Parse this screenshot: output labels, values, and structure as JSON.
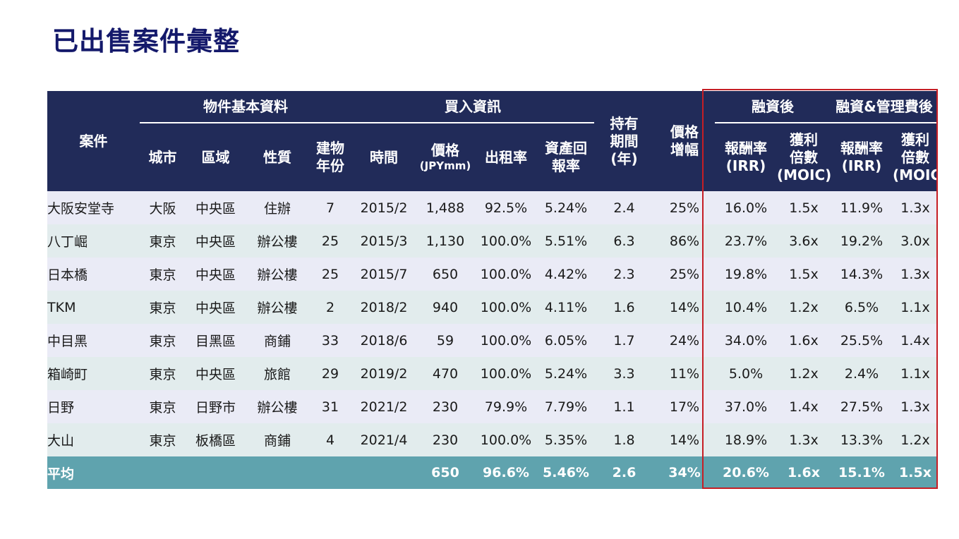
{
  "title": "已出售案件彙整",
  "headers": {
    "case": "案件",
    "group_basic": "物件基本資料",
    "group_buy": "買入資訊",
    "hold_l1": "持有",
    "hold_l2": "期間",
    "hold_l3": "(年)",
    "growth_l1": "價格",
    "growth_l2": "增幅",
    "group_fin": "融資後",
    "group_fin_mgmt": "融資&管理費後",
    "city": "城市",
    "area": "區域",
    "type": "性質",
    "age_l1": "建物",
    "age_l2": "年份",
    "time": "時間",
    "price_l1": "價格",
    "price_l2": "(JPYmm)",
    "occupancy": "出租率",
    "yield_l1": "資產回",
    "yield_l2": "報率",
    "irr_l1": "報酬率",
    "irr_l2": "(IRR)",
    "moic_l1": "獲利",
    "moic_l2": "倍數",
    "moic_l3": "(MOIC)"
  },
  "rows": [
    {
      "case": "大阪安堂寺",
      "city": "大阪",
      "area": "中央區",
      "type": "住辦",
      "age": "7",
      "time": "2015/2",
      "price": "1,488",
      "occupancy": "92.5%",
      "yield": "5.24%",
      "hold": "2.4",
      "growth": "25%",
      "irr_fin": "16.0%",
      "moic_fin": "1.5x",
      "irr_net": "11.9%",
      "moic_net": "1.3x"
    },
    {
      "case": "八丁崛",
      "city": "東京",
      "area": "中央區",
      "type": "辦公樓",
      "age": "25",
      "time": "2015/3",
      "price": "1,130",
      "occupancy": "100.0%",
      "yield": "5.51%",
      "hold": "6.3",
      "growth": "86%",
      "irr_fin": "23.7%",
      "moic_fin": "3.6x",
      "irr_net": "19.2%",
      "moic_net": "3.0x"
    },
    {
      "case": "日本橋",
      "city": "東京",
      "area": "中央區",
      "type": "辦公樓",
      "age": "25",
      "time": "2015/7",
      "price": "650",
      "occupancy": "100.0%",
      "yield": "4.42%",
      "hold": "2.3",
      "growth": "25%",
      "irr_fin": "19.8%",
      "moic_fin": "1.5x",
      "irr_net": "14.3%",
      "moic_net": "1.3x"
    },
    {
      "case": "TKM",
      "city": "東京",
      "area": "中央區",
      "type": "辦公樓",
      "age": "2",
      "time": "2018/2",
      "price": "940",
      "occupancy": "100.0%",
      "yield": "4.11%",
      "hold": "1.6",
      "growth": "14%",
      "irr_fin": "10.4%",
      "moic_fin": "1.2x",
      "irr_net": "6.5%",
      "moic_net": "1.1x"
    },
    {
      "case": "中目黑",
      "city": "東京",
      "area": "目黑區",
      "type": "商鋪",
      "age": "33",
      "time": "2018/6",
      "price": "59",
      "occupancy": "100.0%",
      "yield": "6.05%",
      "hold": "1.7",
      "growth": "24%",
      "irr_fin": "34.0%",
      "moic_fin": "1.6x",
      "irr_net": "25.5%",
      "moic_net": "1.4x"
    },
    {
      "case": "箱崎町",
      "city": "東京",
      "area": "中央區",
      "type": "旅館",
      "age": "29",
      "time": "2019/2",
      "price": "470",
      "occupancy": "100.0%",
      "yield": "5.24%",
      "hold": "3.3",
      "growth": "11%",
      "irr_fin": "5.0%",
      "moic_fin": "1.2x",
      "irr_net": "2.4%",
      "moic_net": "1.1x"
    },
    {
      "case": "日野",
      "city": "東京",
      "area": "日野市",
      "type": "辦公樓",
      "age": "31",
      "time": "2021/2",
      "price": "230",
      "occupancy": "79.9%",
      "yield": "7.79%",
      "hold": "1.1",
      "growth": "17%",
      "irr_fin": "37.0%",
      "moic_fin": "1.4x",
      "irr_net": "27.5%",
      "moic_net": "1.3x"
    },
    {
      "case": "大山",
      "city": "東京",
      "area": "板橋區",
      "type": "商鋪",
      "age": "4",
      "time": "2021/4",
      "price": "230",
      "occupancy": "100.0%",
      "yield": "5.35%",
      "hold": "1.8",
      "growth": "14%",
      "irr_fin": "18.9%",
      "moic_fin": "1.3x",
      "irr_net": "13.3%",
      "moic_net": "1.2x"
    }
  ],
  "average": {
    "label": "平均",
    "price": "650",
    "occupancy": "96.6%",
    "yield": "5.46%",
    "hold": "2.6",
    "growth": "34%",
    "irr_fin": "20.6%",
    "moic_fin": "1.6x",
    "irr_net": "15.1%",
    "moic_net": "1.5x"
  },
  "colors": {
    "title": "#14196b",
    "header_bg": "#212b59",
    "row_odd": "#eaebf6",
    "row_even": "#e2eced",
    "average_bg": "#5fa3ae",
    "highlight_border": "#c61e25"
  }
}
